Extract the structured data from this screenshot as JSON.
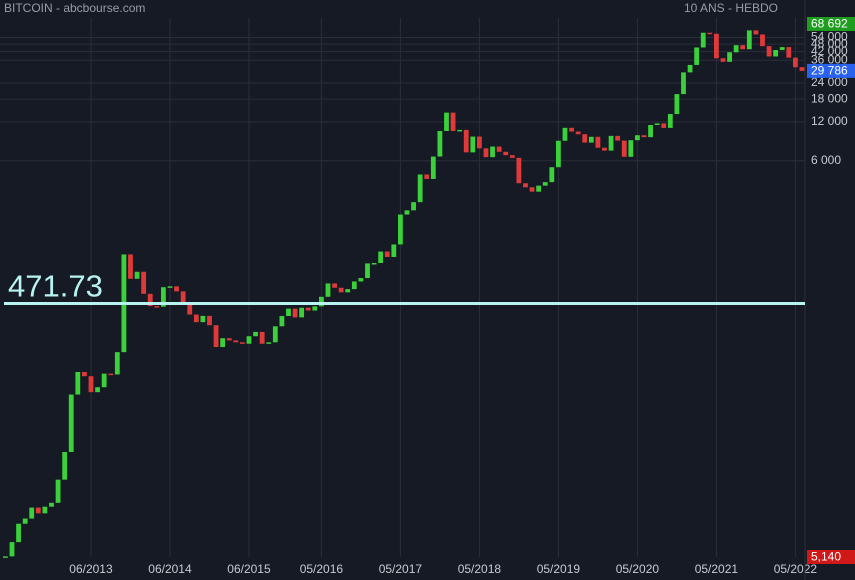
{
  "chart_data": {
    "type": "candlestick",
    "title": "BITCOIN - abcbourse.com",
    "subtitle": "10 ANS - HEBDO",
    "log_scale": true,
    "grid": true,
    "ylim": [
      5.14,
      68692
    ],
    "yticks": [
      {
        "value": 6000,
        "label": "6 000"
      },
      {
        "value": 12000,
        "label": "12 000"
      },
      {
        "value": 18000,
        "label": "18 000"
      },
      {
        "value": 24000,
        "label": "24 000"
      },
      {
        "value": 36000,
        "label": "36 000"
      },
      {
        "value": 42000,
        "label": "42 000"
      },
      {
        "value": 48000,
        "label": "48 000"
      },
      {
        "value": 54000,
        "label": "54 000"
      }
    ],
    "xlim": [
      "2012-05",
      "2022-06"
    ],
    "xticks": [
      {
        "value": "2013-06",
        "label": "06/2013"
      },
      {
        "value": "2014-06",
        "label": "06/2014"
      },
      {
        "value": "2015-06",
        "label": "06/2015"
      },
      {
        "value": "2016-05",
        "label": "05/2016"
      },
      {
        "value": "2017-05",
        "label": "05/2017"
      },
      {
        "value": "2018-05",
        "label": "05/2018"
      },
      {
        "value": "2019-05",
        "label": "05/2019"
      },
      {
        "value": "2020-05",
        "label": "05/2020"
      },
      {
        "value": "2021-05",
        "label": "05/2021"
      },
      {
        "value": "2022-05",
        "label": "05/2022"
      }
    ],
    "hline": {
      "value": 471.73,
      "color": "#b8f4f2"
    },
    "markers": [
      {
        "value": 68692,
        "label": "68 692",
        "color": "#1f9d1f"
      },
      {
        "value": 29786,
        "label": "29 786",
        "color": "#2a62f0"
      },
      {
        "value": 5.14,
        "label": "5,140",
        "color": "#d01818"
      }
    ],
    "up_color": "#3ad13a",
    "down_color": "#e0393a",
    "x": [
      "2012-05",
      "2012-06",
      "2012-07",
      "2012-08",
      "2012-09",
      "2012-10",
      "2012-11",
      "2012-12",
      "2013-01",
      "2013-02",
      "2013-03",
      "2013-04",
      "2013-05",
      "2013-06",
      "2013-07",
      "2013-08",
      "2013-09",
      "2013-10",
      "2013-11",
      "2013-12",
      "2014-01",
      "2014-02",
      "2014-03",
      "2014-04",
      "2014-05",
      "2014-06",
      "2014-07",
      "2014-08",
      "2014-09",
      "2014-10",
      "2014-11",
      "2014-12",
      "2015-01",
      "2015-02",
      "2015-03",
      "2015-04",
      "2015-05",
      "2015-06",
      "2015-07",
      "2015-08",
      "2015-09",
      "2015-10",
      "2015-11",
      "2015-12",
      "2016-01",
      "2016-02",
      "2016-03",
      "2016-04",
      "2016-05",
      "2016-06",
      "2016-07",
      "2016-08",
      "2016-09",
      "2016-10",
      "2016-11",
      "2016-12",
      "2017-01",
      "2017-02",
      "2017-03",
      "2017-04",
      "2017-05",
      "2017-06",
      "2017-07",
      "2017-08",
      "2017-09",
      "2017-10",
      "2017-11",
      "2017-12",
      "2018-01",
      "2018-02",
      "2018-03",
      "2018-04",
      "2018-05",
      "2018-06",
      "2018-07",
      "2018-08",
      "2018-09",
      "2018-10",
      "2018-11",
      "2018-12",
      "2019-01",
      "2019-02",
      "2019-03",
      "2019-04",
      "2019-05",
      "2019-06",
      "2019-07",
      "2019-08",
      "2019-09",
      "2019-10",
      "2019-11",
      "2019-12",
      "2020-01",
      "2020-02",
      "2020-03",
      "2020-04",
      "2020-05",
      "2020-06",
      "2020-07",
      "2020-08",
      "2020-09",
      "2020-10",
      "2020-11",
      "2020-12",
      "2021-01",
      "2021-02",
      "2021-03",
      "2021-04",
      "2021-05",
      "2021-06",
      "2021-07",
      "2021-08",
      "2021-09",
      "2021-10",
      "2021-11",
      "2021-12",
      "2022-01",
      "2022-02",
      "2022-03",
      "2022-04",
      "2022-05",
      "2022-06"
    ],
    "series": [
      {
        "values": [
          5.2,
          6.7,
          9.3,
          10.2,
          12.4,
          11.2,
          12.6,
          13.5,
          20.4,
          33.4,
          93,
          139,
          129,
          97,
          106,
          135,
          133,
          198,
          1130,
          732,
          830,
          560,
          450,
          445,
          630,
          640,
          585,
          480,
          387,
          338,
          378,
          320,
          217,
          254,
          244,
          236,
          230,
          263,
          284,
          230,
          236,
          314,
          377,
          430,
          368,
          437,
          416,
          448,
          531,
          674,
          624,
          575,
          609,
          698,
          742,
          963,
          970,
          1190,
          1080,
          1350,
          2300,
          2480,
          2870,
          4700,
          4340,
          6470,
          10200,
          14150,
          10200,
          10400,
          6970,
          9240,
          7490,
          6400,
          7730,
          7040,
          6630,
          6320,
          4020,
          3740,
          3460,
          3850,
          4100,
          5350,
          8570,
          10800,
          10100,
          9630,
          8300,
          9200,
          7570,
          7190,
          9350,
          8600,
          6440,
          8660,
          9460,
          9140,
          11350,
          11680,
          10780,
          13800,
          19700,
          29000,
          33100,
          45200,
          58800,
          57700,
          37300,
          35000,
          41500,
          47100,
          43800,
          61300,
          57000,
          46300,
          38500,
          43200,
          45500,
          37700,
          31800,
          29786
        ]
      }
    ]
  }
}
